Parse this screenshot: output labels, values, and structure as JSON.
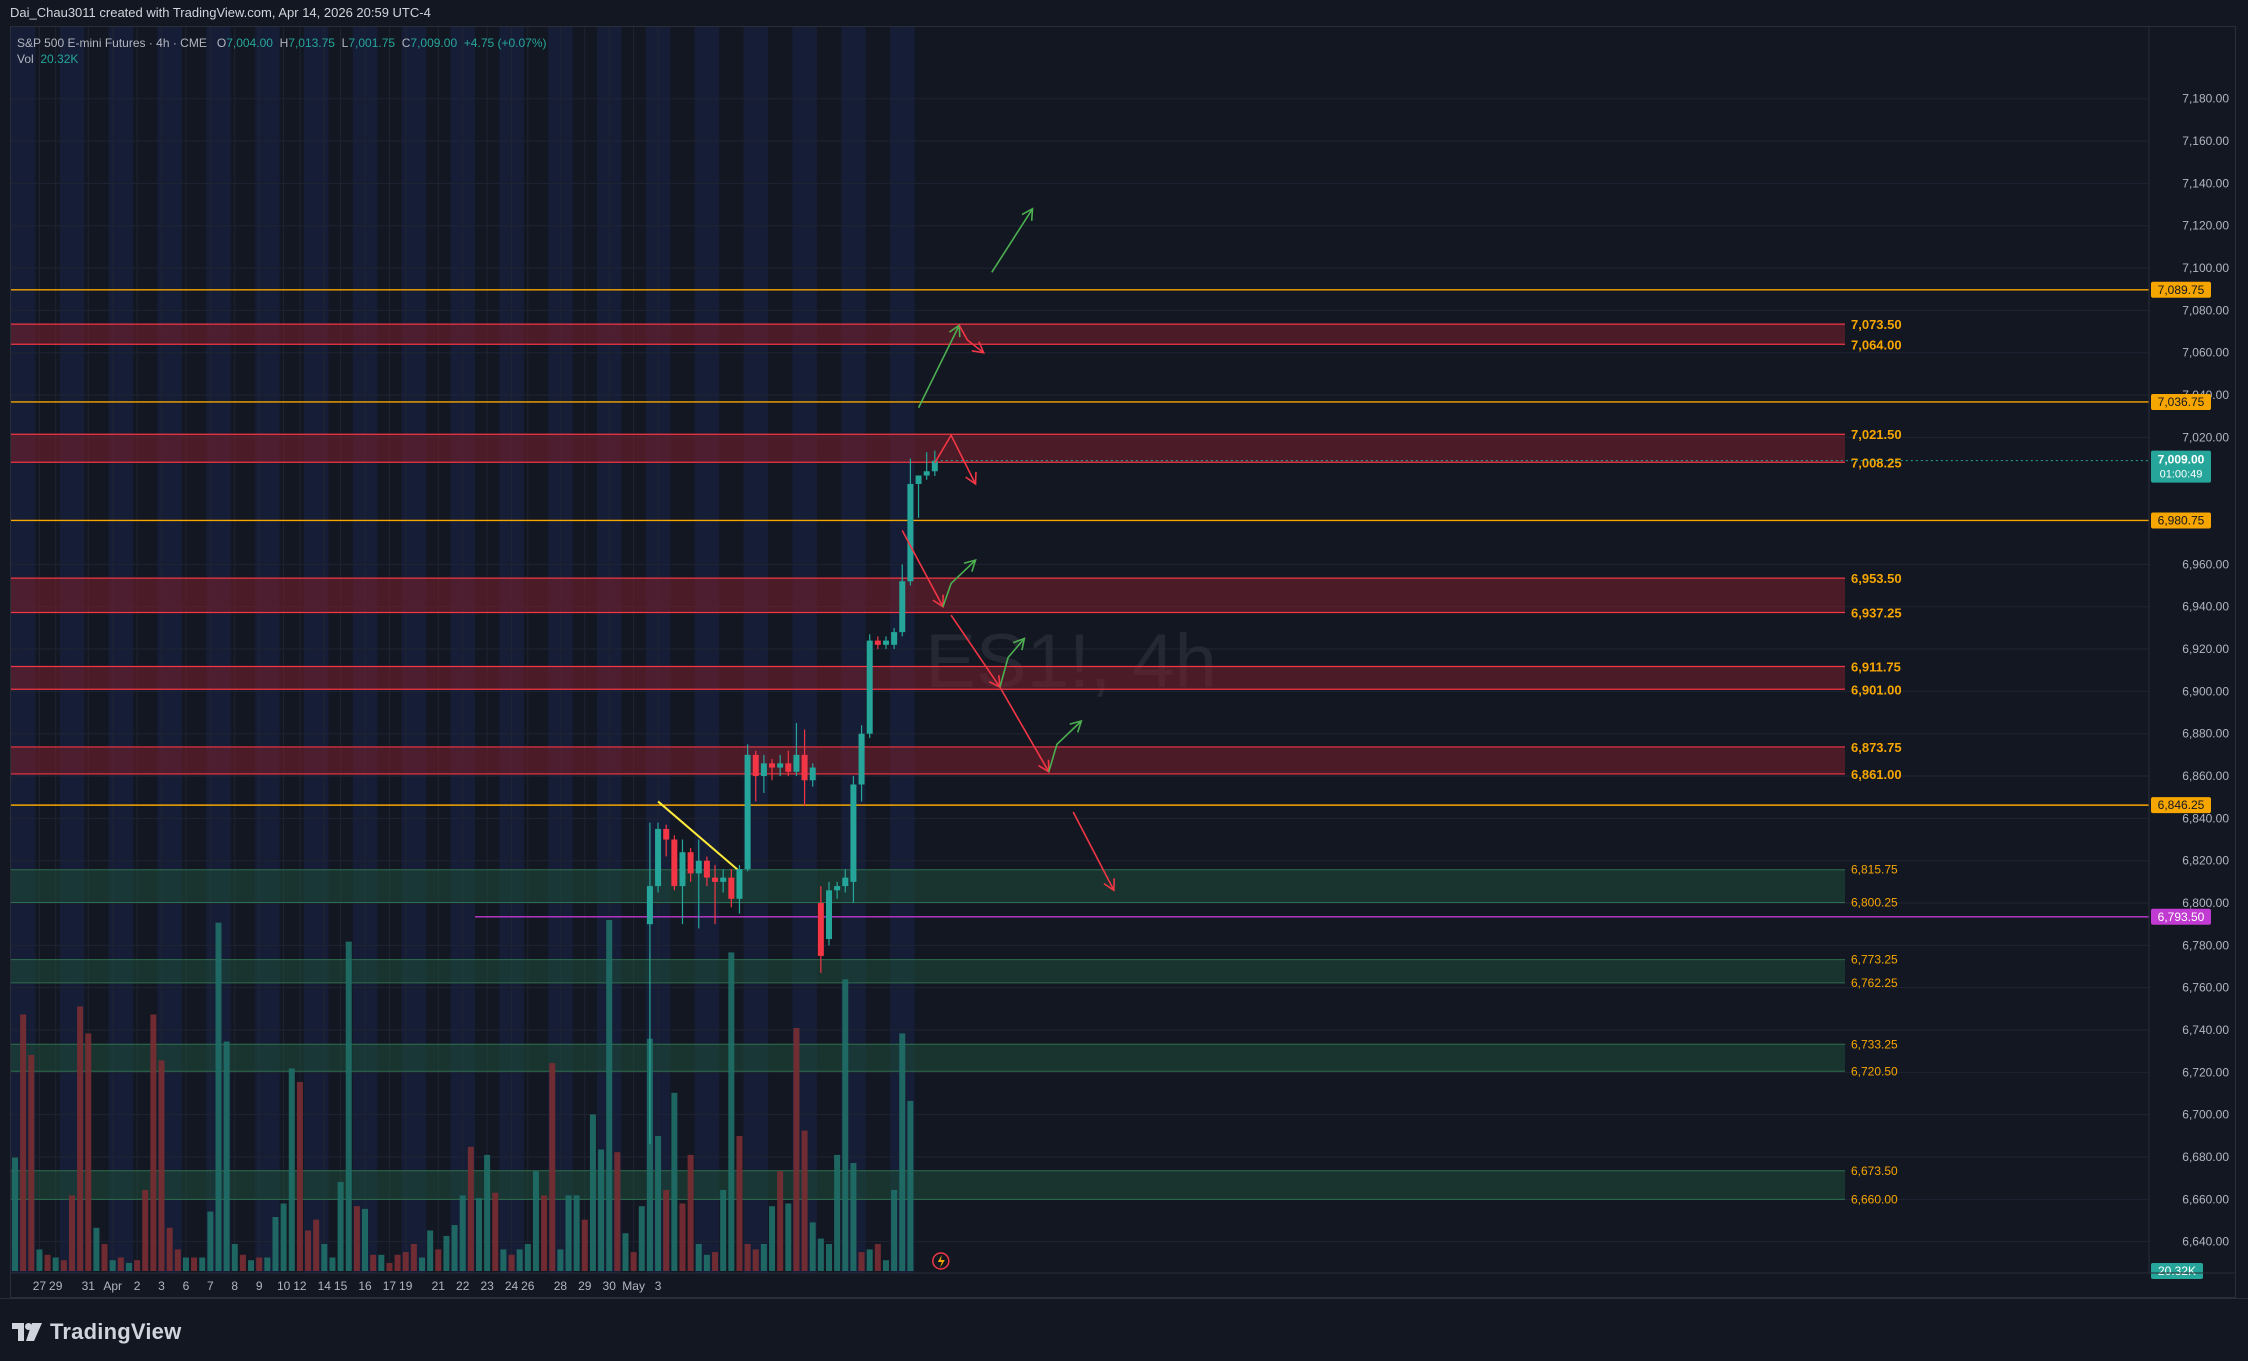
{
  "header": {
    "attribution": "Dai_Chau3011 created with TradingView.com, Apr 14, 2026 20:59 UTC-4"
  },
  "legend": {
    "symbol": "S&P 500 E-mini Futures · 4h · CME",
    "o_label": "O",
    "o_value": "7,004.00",
    "h_label": "H",
    "h_value": "7,013.75",
    "l_label": "L",
    "l_value": "7,001.75",
    "c_label": "C",
    "c_value": "7,009.00",
    "change": "+4.75 (+0.07%)",
    "vol_label": "Vol",
    "vol_value": "20.32K"
  },
  "watermark": "ES1!, 4h",
  "footer": {
    "brand": "TradingView"
  },
  "colors": {
    "up": "#26a69a",
    "down": "#f23645",
    "orange": "#f7a600",
    "purple": "#c13ad1",
    "red_zone": "#7a1f2b",
    "green_zone": "#1f4d3a",
    "session_band": "#1a2548"
  },
  "chart_data": {
    "type": "candlestick",
    "instrument": "ES1!",
    "timeframe": "4h",
    "price_axis": {
      "ylim": [
        6620,
        7195
      ],
      "ticks": [
        "7,180.00",
        "7,160.00",
        "7,140.00",
        "7,120.00",
        "7,100.00",
        "7,080.00",
        "7,060.00",
        "7,040.00",
        "7,020.00",
        "6,960.00",
        "6,940.00",
        "6,920.00",
        "6,900.00",
        "6,880.00",
        "6,860.00",
        "6,840.00",
        "6,820.00",
        "6,800.00",
        "6,780.00",
        "6,760.00",
        "6,740.00",
        "6,720.00",
        "6,700.00",
        "6,680.00",
        "6,660.00",
        "6,640.00"
      ],
      "tick_values": [
        7180,
        7160,
        7140,
        7120,
        7100,
        7080,
        7060,
        7040,
        7020,
        6960,
        6940,
        6920,
        6900,
        6880,
        6860,
        6840,
        6820,
        6800,
        6780,
        6760,
        6740,
        6720,
        6700,
        6680,
        6660,
        6640
      ]
    },
    "time_axis": {
      "labels": [
        "27",
        "29",
        "31",
        "Apr",
        "2",
        "3",
        "6",
        "7",
        "8",
        "9",
        "10",
        "12",
        "14",
        "15",
        "16",
        "17",
        "19",
        "21",
        "22",
        "23",
        "24",
        "26",
        "28",
        "29",
        "30",
        "May",
        "3"
      ],
      "label_bar_index": [
        3,
        5,
        9,
        12,
        15,
        18,
        21,
        24,
        27,
        30,
        33,
        35,
        38,
        40,
        43,
        46,
        48,
        52,
        55,
        58,
        61,
        63,
        67,
        70,
        73,
        76,
        79
      ]
    },
    "current_price": {
      "value": 7009.0,
      "label": "7,009.00",
      "countdown": "01:00:49"
    },
    "volume_label": "20.32K",
    "horizontal_lines": [
      {
        "value": 7089.75,
        "label": "7,089.75",
        "color": "orange"
      },
      {
        "value": 7036.75,
        "label": "7,036.75",
        "color": "orange"
      },
      {
        "value": 6980.75,
        "label": "6,980.75",
        "color": "orange"
      },
      {
        "value": 6846.25,
        "label": "6,846.25",
        "color": "orange"
      },
      {
        "value": 6793.5,
        "label": "6,793.50",
        "color": "purple"
      }
    ],
    "resistance_zones": [
      {
        "top": 7073.5,
        "bottom": 7064.0,
        "top_label": "7,073.50",
        "bottom_label": "7,064.00"
      },
      {
        "top": 7021.5,
        "bottom": 7008.25,
        "top_label": "7,021.50",
        "bottom_label": "7,008.25"
      },
      {
        "top": 6953.5,
        "bottom": 6937.25,
        "top_label": "6,953.50",
        "bottom_label": "6,937.25"
      },
      {
        "top": 6911.75,
        "bottom": 6901.0,
        "top_label": "6,911.75",
        "bottom_label": "6,901.00"
      },
      {
        "top": 6873.75,
        "bottom": 6861.0,
        "top_label": "6,873.75",
        "bottom_label": "6,861.00"
      }
    ],
    "support_zones": [
      {
        "top": 6815.75,
        "bottom": 6800.25,
        "top_label": "6,815.75",
        "bottom_label": "6,800.25"
      },
      {
        "top": 6773.25,
        "bottom": 6762.25,
        "top_label": "6,773.25",
        "bottom_label": "6,762.25"
      },
      {
        "top": 6733.25,
        "bottom": 6720.5,
        "top_label": "6,733.25",
        "bottom_label": "6,720.50"
      },
      {
        "top": 6673.5,
        "bottom": 6660.0,
        "top_label": "6,673.50",
        "bottom_label": "6,660.00"
      }
    ],
    "trendline": {
      "from": [
        79,
        6848
      ],
      "to": [
        89,
        6815
      ]
    },
    "candles": [
      {
        "i": 78,
        "o": 6790,
        "h": 6838,
        "l": 6686,
        "c": 6808
      },
      {
        "i": 79,
        "o": 6808,
        "h": 6838,
        "l": 6805,
        "c": 6835
      },
      {
        "i": 80,
        "o": 6835,
        "h": 6837,
        "l": 6822,
        "c": 6830
      },
      {
        "i": 81,
        "o": 6830,
        "h": 6832,
        "l": 6806,
        "c": 6808
      },
      {
        "i": 82,
        "o": 6808,
        "h": 6830,
        "l": 6790,
        "c": 6824
      },
      {
        "i": 83,
        "o": 6824,
        "h": 6826,
        "l": 6810,
        "c": 6814
      },
      {
        "i": 84,
        "o": 6814,
        "h": 6830,
        "l": 6788,
        "c": 6820
      },
      {
        "i": 85,
        "o": 6820,
        "h": 6822,
        "l": 6808,
        "c": 6812
      },
      {
        "i": 86,
        "o": 6812,
        "h": 6818,
        "l": 6790,
        "c": 6810
      },
      {
        "i": 87,
        "o": 6810,
        "h": 6816,
        "l": 6805,
        "c": 6812
      },
      {
        "i": 88,
        "o": 6812,
        "h": 6816,
        "l": 6798,
        "c": 6802
      },
      {
        "i": 89,
        "o": 6802,
        "h": 6818,
        "l": 6795,
        "c": 6816
      },
      {
        "i": 90,
        "o": 6816,
        "h": 6875,
        "l": 6815,
        "c": 6870
      },
      {
        "i": 91,
        "o": 6870,
        "h": 6872,
        "l": 6848,
        "c": 6860
      },
      {
        "i": 92,
        "o": 6860,
        "h": 6870,
        "l": 6852,
        "c": 6866
      },
      {
        "i": 93,
        "o": 6866,
        "h": 6868,
        "l": 6858,
        "c": 6864
      },
      {
        "i": 94,
        "o": 6864,
        "h": 6870,
        "l": 6860,
        "c": 6866
      },
      {
        "i": 95,
        "o": 6866,
        "h": 6872,
        "l": 6860,
        "c": 6862
      },
      {
        "i": 96,
        "o": 6862,
        "h": 6885,
        "l": 6860,
        "c": 6870
      },
      {
        "i": 97,
        "o": 6870,
        "h": 6882,
        "l": 6846,
        "c": 6858
      },
      {
        "i": 98,
        "o": 6858,
        "h": 6866,
        "l": 6855,
        "c": 6864
      },
      {
        "i": 99,
        "o": 6800,
        "h": 6808,
        "l": 6767,
        "c": 6775
      },
      {
        "i": 100,
        "o": 6783,
        "h": 6810,
        "l": 6780,
        "c": 6806
      },
      {
        "i": 101,
        "o": 6806,
        "h": 6810,
        "l": 6802,
        "c": 6808
      },
      {
        "i": 102,
        "o": 6808,
        "h": 6816,
        "l": 6805,
        "c": 6812
      },
      {
        "i": 103,
        "o": 6810,
        "h": 6860,
        "l": 6800,
        "c": 6856
      },
      {
        "i": 104,
        "o": 6856,
        "h": 6884,
        "l": 6848,
        "c": 6880
      },
      {
        "i": 105,
        "o": 6880,
        "h": 6927,
        "l": 6878,
        "c": 6924
      },
      {
        "i": 106,
        "o": 6924,
        "h": 6926,
        "l": 6920,
        "c": 6922
      },
      {
        "i": 107,
        "o": 6922,
        "h": 6926,
        "l": 6920,
        "c": 6924
      },
      {
        "i": 108,
        "o": 6922,
        "h": 6930,
        "l": 6920,
        "c": 6928
      },
      {
        "i": 109,
        "o": 6928,
        "h": 6960,
        "l": 6926,
        "c": 6952
      },
      {
        "i": 110,
        "o": 6952,
        "h": 7010,
        "l": 6950,
        "c": 6998
      },
      {
        "i": 111,
        "o": 6998,
        "h": 7002,
        "l": 6982,
        "c": 7002
      },
      {
        "i": 112,
        "o": 7002,
        "h": 7013,
        "l": 7000,
        "c": 7004
      },
      {
        "i": 113,
        "o": 7004,
        "h": 7013.75,
        "l": 7001.75,
        "c": 7009
      }
    ],
    "volume": [
      {
        "i": 0,
        "v": 42,
        "up": true
      },
      {
        "i": 1,
        "v": 95,
        "up": false
      },
      {
        "i": 2,
        "v": 80,
        "up": false
      },
      {
        "i": 3,
        "v": 8,
        "up": true
      },
      {
        "i": 4,
        "v": 6,
        "up": false
      },
      {
        "i": 5,
        "v": 5,
        "up": true
      },
      {
        "i": 6,
        "v": 4,
        "up": false
      },
      {
        "i": 7,
        "v": 28,
        "up": false
      },
      {
        "i": 8,
        "v": 98,
        "up": false
      },
      {
        "i": 9,
        "v": 88,
        "up": false
      },
      {
        "i": 10,
        "v": 16,
        "up": true
      },
      {
        "i": 11,
        "v": 10,
        "up": false
      },
      {
        "i": 12,
        "v": 4,
        "up": true
      },
      {
        "i": 13,
        "v": 5,
        "up": false
      },
      {
        "i": 14,
        "v": 3,
        "up": true
      },
      {
        "i": 15,
        "v": 4,
        "up": false
      },
      {
        "i": 16,
        "v": 30,
        "up": false
      },
      {
        "i": 17,
        "v": 95,
        "up": false
      },
      {
        "i": 18,
        "v": 78,
        "up": false
      },
      {
        "i": 19,
        "v": 16,
        "up": false
      },
      {
        "i": 20,
        "v": 8,
        "up": false
      },
      {
        "i": 21,
        "v": 5,
        "up": true
      },
      {
        "i": 22,
        "v": 5,
        "up": false
      },
      {
        "i": 23,
        "v": 5,
        "up": true
      },
      {
        "i": 24,
        "v": 22,
        "up": true
      },
      {
        "i": 25,
        "v": 129,
        "up": true
      },
      {
        "i": 26,
        "v": 85,
        "up": true
      },
      {
        "i": 27,
        "v": 10,
        "up": true
      },
      {
        "i": 28,
        "v": 6,
        "up": false
      },
      {
        "i": 29,
        "v": 4,
        "up": true
      },
      {
        "i": 30,
        "v": 5,
        "up": false
      },
      {
        "i": 31,
        "v": 5,
        "up": true
      },
      {
        "i": 32,
        "v": 20,
        "up": true
      },
      {
        "i": 33,
        "v": 25,
        "up": true
      },
      {
        "i": 34,
        "v": 75,
        "up": true
      },
      {
        "i": 35,
        "v": 70,
        "up": false
      },
      {
        "i": 36,
        "v": 15,
        "up": false
      },
      {
        "i": 37,
        "v": 19,
        "up": false
      },
      {
        "i": 38,
        "v": 10,
        "up": true
      },
      {
        "i": 39,
        "v": 5,
        "up": true
      },
      {
        "i": 40,
        "v": 33,
        "up": true
      },
      {
        "i": 41,
        "v": 122,
        "up": true
      },
      {
        "i": 42,
        "v": 24,
        "up": false
      },
      {
        "i": 43,
        "v": 23,
        "up": true
      },
      {
        "i": 44,
        "v": 6,
        "up": false
      },
      {
        "i": 45,
        "v": 6,
        "up": true
      },
      {
        "i": 46,
        "v": 3,
        "up": false
      },
      {
        "i": 47,
        "v": 6,
        "up": false
      },
      {
        "i": 48,
        "v": 7,
        "up": false
      },
      {
        "i": 49,
        "v": 10,
        "up": false
      },
      {
        "i": 50,
        "v": 5,
        "up": true
      },
      {
        "i": 51,
        "v": 15,
        "up": true
      },
      {
        "i": 52,
        "v": 8,
        "up": false
      },
      {
        "i": 53,
        "v": 13,
        "up": true
      },
      {
        "i": 54,
        "v": 17,
        "up": true
      },
      {
        "i": 55,
        "v": 28,
        "up": true
      },
      {
        "i": 56,
        "v": 46,
        "up": false
      },
      {
        "i": 57,
        "v": 27,
        "up": true
      },
      {
        "i": 58,
        "v": 43,
        "up": true
      },
      {
        "i": 59,
        "v": 29,
        "up": false
      },
      {
        "i": 60,
        "v": 8,
        "up": true
      },
      {
        "i": 61,
        "v": 6,
        "up": false
      },
      {
        "i": 62,
        "v": 8,
        "up": true
      },
      {
        "i": 63,
        "v": 10,
        "up": true
      },
      {
        "i": 64,
        "v": 37,
        "up": true
      },
      {
        "i": 65,
        "v": 28,
        "up": false
      },
      {
        "i": 66,
        "v": 77,
        "up": false
      },
      {
        "i": 67,
        "v": 8,
        "up": true
      },
      {
        "i": 68,
        "v": 28,
        "up": true
      },
      {
        "i": 69,
        "v": 28,
        "up": true
      },
      {
        "i": 70,
        "v": 19,
        "up": false
      },
      {
        "i": 71,
        "v": 58,
        "up": true
      },
      {
        "i": 72,
        "v": 45,
        "up": true
      },
      {
        "i": 73,
        "v": 130,
        "up": true
      },
      {
        "i": 74,
        "v": 44,
        "up": false
      },
      {
        "i": 75,
        "v": 14,
        "up": true
      },
      {
        "i": 76,
        "v": 7,
        "up": false
      },
      {
        "i": 77,
        "v": 24,
        "up": true
      },
      {
        "i": 78,
        "v": 86,
        "up": true
      },
      {
        "i": 79,
        "v": 50,
        "up": true
      },
      {
        "i": 80,
        "v": 30,
        "up": false
      },
      {
        "i": 81,
        "v": 66,
        "up": true
      },
      {
        "i": 82,
        "v": 25,
        "up": false
      },
      {
        "i": 83,
        "v": 43,
        "up": false
      },
      {
        "i": 84,
        "v": 10,
        "up": true
      },
      {
        "i": 85,
        "v": 6,
        "up": true
      },
      {
        "i": 86,
        "v": 7,
        "up": false
      },
      {
        "i": 87,
        "v": 30,
        "up": true
      },
      {
        "i": 88,
        "v": 118,
        "up": true
      },
      {
        "i": 89,
        "v": 50,
        "up": false
      },
      {
        "i": 90,
        "v": 10,
        "up": false
      },
      {
        "i": 91,
        "v": 8,
        "up": false
      },
      {
        "i": 92,
        "v": 10,
        "up": true
      },
      {
        "i": 93,
        "v": 24,
        "up": true
      },
      {
        "i": 94,
        "v": 37,
        "up": false
      },
      {
        "i": 95,
        "v": 25,
        "up": true
      },
      {
        "i": 96,
        "v": 90,
        "up": false
      },
      {
        "i": 97,
        "v": 52,
        "up": false
      },
      {
        "i": 98,
        "v": 18,
        "up": true
      },
      {
        "i": 99,
        "v": 12,
        "up": true
      },
      {
        "i": 100,
        "v": 10,
        "up": true
      },
      {
        "i": 101,
        "v": 43,
        "up": true
      },
      {
        "i": 102,
        "v": 108,
        "up": true
      },
      {
        "i": 103,
        "v": 40,
        "up": true
      },
      {
        "i": 104,
        "v": 7,
        "up": false
      },
      {
        "i": 105,
        "v": 8,
        "up": true
      },
      {
        "i": 106,
        "v": 10,
        "up": false
      },
      {
        "i": 107,
        "v": 4,
        "up": true
      },
      {
        "i": 108,
        "v": 30,
        "up": true
      },
      {
        "i": 109,
        "v": 88,
        "up": true
      },
      {
        "i": 110,
        "v": 63,
        "up": true
      }
    ],
    "projection_arrows": [
      {
        "color": "green",
        "points": [
          [
            111,
            7034
          ],
          [
            116,
            7073
          ]
        ]
      },
      {
        "color": "red",
        "points": [
          [
            116,
            7073
          ],
          [
            117,
            7066
          ],
          [
            119,
            7060
          ]
        ]
      },
      {
        "color": "green",
        "points": [
          [
            120,
            7098
          ],
          [
            125,
            7128
          ]
        ]
      },
      {
        "color": "red",
        "points": [
          [
            113,
            7008
          ],
          [
            115,
            7021
          ],
          [
            118,
            6998
          ]
        ]
      },
      {
        "color": "red",
        "points": [
          [
            109,
            6976
          ],
          [
            114,
            6940
          ]
        ]
      },
      {
        "color": "green",
        "points": [
          [
            114,
            6940
          ],
          [
            115,
            6951
          ],
          [
            118,
            6962
          ]
        ]
      },
      {
        "color": "red",
        "points": [
          [
            115,
            6936
          ],
          [
            121,
            6902
          ]
        ]
      },
      {
        "color": "green",
        "points": [
          [
            121,
            6902
          ],
          [
            122,
            6916
          ],
          [
            124,
            6925
          ]
        ]
      },
      {
        "color": "red",
        "points": [
          [
            121,
            6902
          ],
          [
            127,
            6862
          ]
        ]
      },
      {
        "color": "green",
        "points": [
          [
            127,
            6862
          ],
          [
            128,
            6875
          ],
          [
            131,
            6886
          ]
        ]
      },
      {
        "color": "red",
        "points": [
          [
            130,
            6843
          ],
          [
            135,
            6806
          ]
        ]
      }
    ]
  }
}
